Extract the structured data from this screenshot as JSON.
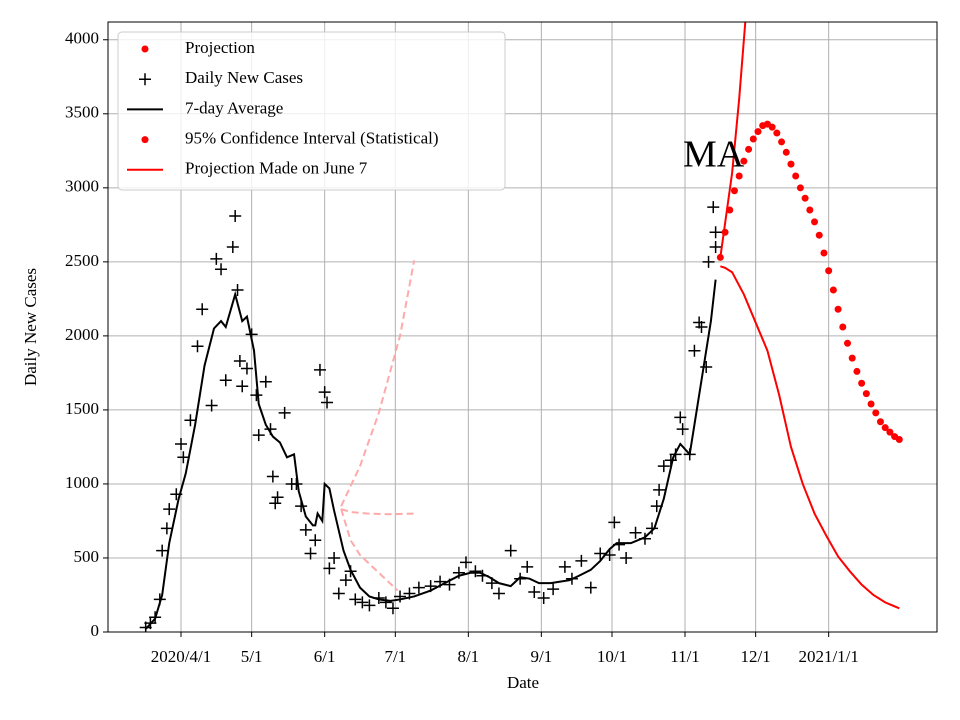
{
  "chart_data": {
    "type": "line",
    "x_label": "Date",
    "y_label": "Daily New Cases",
    "annotation": "MA",
    "xlim": [
      60,
      412
    ],
    "ylim": [
      0,
      4120
    ],
    "xticks": [
      {
        "value": 91,
        "label": "2020/4/1"
      },
      {
        "value": 121,
        "label": "5/1"
      },
      {
        "value": 152,
        "label": "6/1"
      },
      {
        "value": 182,
        "label": "7/1"
      },
      {
        "value": 213,
        "label": "8/1"
      },
      {
        "value": 244,
        "label": "9/1"
      },
      {
        "value": 274,
        "label": "10/1"
      },
      {
        "value": 305,
        "label": "11/1"
      },
      {
        "value": 335,
        "label": "12/1"
      },
      {
        "value": 366,
        "label": "2021/1/1"
      }
    ],
    "yticks": [
      0,
      500,
      1000,
      1500,
      2000,
      2500,
      3000,
      3500,
      4000
    ],
    "grid": true,
    "legend": "upper left",
    "series": [
      {
        "name": "Projection",
        "color": "#ff0000",
        "style": "dots",
        "legend_marker": "dot",
        "lines": [
          {
            "x": [
              320,
              322,
              324,
              326,
              328,
              330,
              332,
              334,
              336,
              338,
              340,
              342,
              344,
              346,
              348,
              350,
              352,
              354,
              356,
              358,
              360,
              362,
              364,
              366,
              368,
              370,
              372,
              374,
              376,
              378,
              380,
              382,
              384,
              386,
              388,
              390,
              392,
              394,
              396
            ],
            "values": [
              2530,
              2700,
              2850,
              2980,
              3080,
              3180,
              3260,
              3330,
              3380,
              3420,
              3430,
              3410,
              3370,
              3310,
              3240,
              3160,
              3080,
              3000,
              2930,
              2850,
              2770,
              2680,
              2560,
              2440,
              2310,
              2180,
              2060,
              1950,
              1850,
              1760,
              1680,
              1610,
              1540,
              1480,
              1420,
              1380,
              1350,
              1320,
              1300
            ]
          }
        ]
      },
      {
        "name": "Daily New Cases",
        "color": "#000000",
        "style": "plus",
        "legend_marker": "plus",
        "lines": [
          {
            "x": [
              76,
              78,
              80,
              82,
              83,
              85,
              86,
              89,
              91,
              92,
              95,
              98,
              100,
              104,
              106,
              108,
              110,
              113,
              114,
              115,
              116,
              117,
              119,
              121,
              123,
              124,
              127,
              129,
              130,
              131,
              132,
              135,
              138,
              140,
              142,
              144,
              146,
              148,
              150,
              152,
              153,
              154,
              156,
              158,
              161,
              163,
              165,
              168,
              171,
              175,
              178,
              181,
              184,
              188,
              192,
              197,
              201,
              205,
              209,
              212,
              216,
              219,
              223,
              226,
              231,
              235,
              238,
              241,
              245,
              249,
              254,
              257,
              261,
              265,
              269,
              273,
              275,
              277,
              280,
              284,
              288,
              291,
              293,
              294,
              296,
              299,
              301,
              303,
              304,
              307,
              309,
              311,
              312,
              314,
              315,
              317,
              318,
              318
            ],
            "values": [
              30,
              60,
              100,
              220,
              550,
              700,
              830,
              930,
              1270,
              1180,
              1430,
              1930,
              2180,
              1530,
              2520,
              2450,
              1700,
              2600,
              2810,
              2310,
              1830,
              1660,
              1780,
              2010,
              1600,
              1330,
              1690,
              1370,
              1050,
              870,
              910,
              1480,
              1000,
              1000,
              850,
              690,
              530,
              620,
              1770,
              1620,
              1550,
              430,
              500,
              260,
              350,
              410,
              220,
              200,
              180,
              230,
              200,
              160,
              240,
              260,
              300,
              310,
              340,
              320,
              400,
              470,
              410,
              380,
              330,
              260,
              550,
              360,
              440,
              270,
              230,
              290,
              440,
              360,
              480,
              300,
              530,
              520,
              740,
              590,
              500,
              670,
              630,
              700,
              850,
              960,
              1120,
              1160,
              1200,
              1450,
              1370,
              1200,
              1900,
              2090,
              2060,
              1790,
              2500,
              2870,
              2700,
              2600
            ]
          }
        ]
      },
      {
        "name": "7-day Average",
        "color": "#000000",
        "style": "line",
        "legend_marker": "line",
        "lines": [
          {
            "x": [
              76,
              80,
              83,
              86,
              90,
              93,
              97,
              101,
              105,
              108,
              110,
              114,
              117,
              119,
              122,
              124,
              127,
              130,
              133,
              136,
              139,
              141,
              144,
              147,
              148,
              149,
              151,
              152,
              154,
              156,
              160,
              163,
              167,
              171,
              175,
              180,
              184,
              190,
              197,
              203,
              209,
              214,
              218,
              222,
              226,
              231,
              235,
              239,
              243,
              248,
              252,
              256,
              260,
              265,
              269,
              273,
              276,
              282,
              288,
              292,
              296,
              300,
              303,
              307,
              310,
              313,
              316,
              318
            ],
            "values": [
              20,
              90,
              250,
              600,
              900,
              1070,
              1400,
              1800,
              2050,
              2100,
              2060,
              2280,
              2100,
              2130,
              1900,
              1540,
              1400,
              1320,
              1280,
              1180,
              1200,
              950,
              780,
              720,
              720,
              800,
              750,
              1000,
              970,
              820,
              550,
              420,
              300,
              240,
              220,
              210,
              220,
              240,
              280,
              330,
              380,
              400,
              400,
              370,
              330,
              310,
              370,
              360,
              330,
              330,
              340,
              350,
              380,
              420,
              480,
              560,
              600,
              600,
              640,
              700,
              900,
              1180,
              1270,
              1200,
              1500,
              1800,
              2100,
              2380
            ]
          }
        ]
      },
      {
        "name": "95% Confidence Interval (Statistical)",
        "color": "#ff0000",
        "style": "line",
        "legend_marker": "dot",
        "lines": [
          {
            "x": [
              320,
              325,
              328,
              331
            ],
            "values": [
              2530,
              3100,
              3600,
              4200
            ]
          },
          {
            "x": [
              320,
              322,
              325,
              330,
              335,
              340,
              345,
              350,
              355,
              360,
              365,
              370,
              375,
              380,
              385,
              390,
              396
            ],
            "values": [
              2470,
              2460,
              2430,
              2280,
              2090,
              1900,
              1600,
              1250,
              1000,
              800,
              650,
              510,
              410,
              320,
              250,
              200,
              160
            ]
          }
        ]
      },
      {
        "name": "Projection Made on June 7",
        "color": "#ffaaaa",
        "style": "dashed",
        "legend_marker": "line",
        "legend_color": "#ff0000",
        "lines": [
          {
            "x": [
              159,
              167,
              175,
              184,
              190
            ],
            "values": [
              850,
              1120,
              1480,
              2000,
              2510
            ]
          },
          {
            "x": [
              159,
              163,
              170,
              180,
              190
            ],
            "values": [
              830,
              810,
              800,
              795,
              800
            ]
          },
          {
            "x": [
              159,
              163,
              167,
              175,
              183
            ],
            "values": [
              830,
              620,
              520,
              400,
              280
            ]
          }
        ]
      }
    ]
  }
}
